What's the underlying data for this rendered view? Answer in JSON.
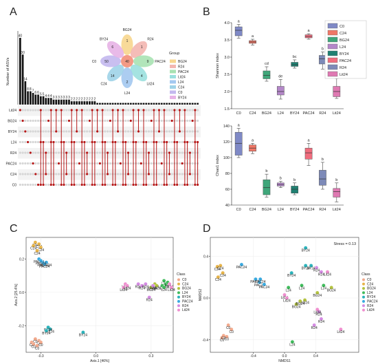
{
  "panel_labels": [
    "A",
    "B",
    "C",
    "D"
  ],
  "chart_data": [
    {
      "panel": "A",
      "type": "bar",
      "ylabel": "Number of ASVs",
      "values": [
        40,
        30,
        14,
        8,
        8,
        7,
        6,
        6,
        5,
        5,
        4,
        4,
        4,
        3,
        3,
        3,
        3,
        3,
        3,
        3,
        2,
        2,
        2,
        2,
        2,
        2,
        2,
        2,
        2,
        2,
        1,
        1,
        1,
        1,
        1,
        1,
        1,
        1,
        1,
        1,
        1,
        1,
        1,
        1,
        1,
        1,
        1,
        1,
        1,
        1,
        1,
        1,
        1,
        1,
        1,
        1,
        1,
        1,
        1,
        1,
        1,
        1,
        1,
        1,
        1,
        1,
        1,
        1,
        1,
        1
      ],
      "sets": [
        "Lit24",
        "BG24",
        "BY24",
        "L24",
        "R24",
        "PAC24",
        "C24",
        "C0"
      ],
      "flower": {
        "petals": [
          {
            "name": "BG24",
            "value": "1",
            "color": "#f7d68e"
          },
          {
            "name": "R24",
            "value": "1",
            "color": "#f3b6b0"
          },
          {
            "name": "PAC24",
            "value": "9",
            "color": "#a8e2b2"
          },
          {
            "name": "Lit24",
            "value": "4",
            "color": "#9be0de"
          },
          {
            "name": "L24",
            "value": "2",
            "color": "#a3c8f0"
          },
          {
            "name": "C24",
            "value": "14",
            "color": "#9fd3e8"
          },
          {
            "name": "C0",
            "value": "50",
            "color": "#c3b8ee"
          },
          {
            "name": "BY24",
            "value": "6",
            "color": "#e7b3e6"
          }
        ],
        "center": "40",
        "legend_title": "Group",
        "legend": [
          "BG24",
          "R24",
          "PAC24",
          "Lit24",
          "L24",
          "C24",
          "C0",
          "BY24"
        ]
      }
    },
    {
      "panel": "B-top",
      "type": "box",
      "ylabel": "Shannon index",
      "ylim": [
        1.5,
        4.0
      ],
      "yticks": [
        "1.5",
        "2.0",
        "2.5",
        "3.0",
        "3.5",
        "4.0"
      ],
      "categories": [
        "C0",
        "C24",
        "BG24",
        "L24",
        "BY24",
        "PAC24",
        "R24",
        "Lit24"
      ],
      "boxes": [
        {
          "min": 3.55,
          "q1": 3.62,
          "median": 3.78,
          "q3": 3.88,
          "max": 3.95,
          "letter": "a"
        },
        {
          "min": 3.35,
          "q1": 3.4,
          "median": 3.44,
          "q3": 3.48,
          "max": 3.52,
          "letter": "a"
        },
        {
          "min": 2.3,
          "q1": 2.37,
          "median": 2.47,
          "q3": 2.6,
          "max": 2.72,
          "letter": "cd"
        },
        {
          "min": 1.78,
          "q1": 1.9,
          "median": 2.0,
          "q3": 2.15,
          "max": 2.35,
          "letter": "de"
        },
        {
          "min": 2.68,
          "q1": 2.73,
          "median": 2.78,
          "q3": 2.85,
          "max": 2.92,
          "letter": "bc"
        },
        {
          "min": 3.52,
          "q1": 3.56,
          "median": 3.6,
          "q3": 3.65,
          "max": 3.68,
          "letter": "a"
        },
        {
          "min": 2.65,
          "q1": 2.8,
          "median": 2.95,
          "q3": 3.05,
          "max": 3.15,
          "letter": "b"
        },
        {
          "min": 1.8,
          "q1": 1.85,
          "median": 2.0,
          "q3": 2.15,
          "max": 2.38,
          "letter": "e"
        }
      ]
    },
    {
      "panel": "B-bottom",
      "type": "box",
      "ylabel": "Chao1 index",
      "ylim": [
        40,
        140
      ],
      "yticks": [
        "40",
        "60",
        "80",
        "100",
        "120",
        "140"
      ],
      "categories": [
        "C0",
        "C24",
        "BG24",
        "L24",
        "BY24",
        "PAC24",
        "R24",
        "Lit24"
      ],
      "boxes": [
        {
          "min": 100,
          "q1": 103,
          "median": 118,
          "q3": 132,
          "max": 137,
          "letter": "a"
        },
        {
          "min": 105,
          "q1": 108,
          "median": 112,
          "q3": 116,
          "max": 118,
          "letter": "a"
        },
        {
          "min": 50,
          "q1": 53,
          "median": 62,
          "q3": 72,
          "max": 79,
          "letter": "b"
        },
        {
          "min": 62,
          "q1": 64,
          "median": 66,
          "q3": 68,
          "max": 70,
          "letter": "b"
        },
        {
          "min": 53,
          "q1": 55,
          "median": 60,
          "q3": 64,
          "max": 68,
          "letter": "b"
        },
        {
          "min": 90,
          "q1": 98,
          "median": 106,
          "q3": 112,
          "max": 118,
          "letter": "a"
        },
        {
          "min": 60,
          "q1": 65,
          "median": 73,
          "q3": 84,
          "max": 94,
          "letter": "b"
        },
        {
          "min": 44,
          "q1": 50,
          "median": 57,
          "q3": 61,
          "max": 68,
          "letter": "b"
        }
      ]
    },
    {
      "panel": "C",
      "type": "scatter",
      "xlabel": "Axis.1 [46%]",
      "ylabel": "Axis.2 [25.4%]",
      "legend_title": "Class",
      "xlim": [
        -0.38,
        0.42
      ],
      "ylim": [
        -0.36,
        0.33
      ],
      "xticks": [
        -0.3,
        0.0,
        0.3
      ],
      "yticks": [
        -0.2,
        0.0,
        0.2
      ],
      "xtick_labels": [
        "-0.3",
        "0.0",
        "0.3"
      ],
      "ytick_labels": [
        "-0.2",
        "0.0",
        "0.2"
      ],
      "series": [
        {
          "name": "C0",
          "color": "#f2a98c",
          "x": [
            -0.35,
            -0.33,
            -0.31,
            -0.34,
            -0.32,
            -0.3
          ],
          "y": [
            -0.3,
            -0.28,
            -0.29,
            -0.31,
            -0.32,
            -0.3
          ]
        },
        {
          "name": "C24",
          "color": "#e7b44a",
          "x": [
            -0.33,
            -0.31,
            -0.3,
            -0.32,
            -0.34
          ],
          "y": [
            0.3,
            0.29,
            0.27,
            0.25,
            0.28
          ]
        },
        {
          "name": "BG24",
          "color": "#b3c23f",
          "x": [
            0.32,
            0.31,
            0.3,
            0.33
          ],
          "y": [
            0.05,
            0.04,
            0.03,
            0.04
          ]
        },
        {
          "name": "L24",
          "color": "#3fbb5b",
          "x": [
            0.37,
            0.38,
            0.36,
            0.39,
            0.37
          ],
          "y": [
            0.07,
            0.05,
            0.04,
            0.06,
            0.03
          ]
        },
        {
          "name": "BY24",
          "color": "#2bb3bb",
          "x": [
            -0.25,
            -0.26,
            -0.27,
            -0.07
          ],
          "y": [
            -0.22,
            -0.21,
            -0.23,
            -0.24
          ]
        },
        {
          "name": "PAC24",
          "color": "#39a9df",
          "x": [
            -0.31,
            -0.29,
            -0.27,
            -0.28,
            -0.3
          ],
          "y": [
            0.2,
            0.18,
            0.18,
            0.17,
            0.19
          ]
        },
        {
          "name": "R24",
          "color": "#d58be3",
          "x": [
            0.23,
            0.25,
            0.27,
            0.31,
            0.29
          ],
          "y": [
            0.05,
            0.04,
            0.05,
            0.04,
            -0.03
          ]
        },
        {
          "name": "Lit24",
          "color": "#ef8fcf",
          "x": [
            0.4,
            0.41,
            0.16,
            0.15,
            0.17
          ],
          "y": [
            0.05,
            0.03,
            0.05,
            0.03,
            0.04
          ]
        }
      ]
    },
    {
      "panel": "D",
      "type": "scatter",
      "xlabel": "NMDS1",
      "ylabel": "NMDS2",
      "annotation": "Stress = 0.13",
      "legend_title": "Class",
      "xlim": [
        -0.95,
        0.95
      ],
      "ylim": [
        -0.52,
        0.58
      ],
      "xticks": [
        -0.4,
        0.0,
        0.4
      ],
      "yticks": [
        -0.4,
        0.0,
        0.4
      ],
      "xtick_labels": [
        "-0.4",
        "0.0",
        "0.4"
      ],
      "ytick_labels": [
        "-0.4",
        "0.0",
        "0.4"
      ],
      "series": [
        {
          "name": "C0",
          "color": "#f2a98c",
          "x": [
            -0.8,
            -0.74,
            -0.68,
            -0.72,
            -0.78
          ],
          "y": [
            -0.38,
            -0.37,
            -0.3,
            -0.26,
            -0.36
          ]
        },
        {
          "name": "C24",
          "color": "#e7b44a",
          "x": [
            -0.86,
            -0.82,
            -0.79,
            -0.85
          ],
          "y": [
            0.3,
            0.31,
            0.24,
            0.2
          ]
        },
        {
          "name": "BG24",
          "color": "#b3c23f",
          "x": [
            0.42,
            0.26,
            0.15,
            0.2,
            0.6
          ],
          "y": [
            0.05,
            -0.02,
            -0.06,
            -0.03,
            0.1
          ]
        },
        {
          "name": "L24",
          "color": "#3fbb5b",
          "x": [
            0.05,
            0.22,
            0.5,
            0.1
          ],
          "y": [
            0.1,
            0.12,
            0.12,
            -0.42
          ]
        },
        {
          "name": "BY24",
          "color": "#2bb3bb",
          "x": [
            0.27,
            0.27,
            0.34,
            0.09
          ],
          "y": [
            0.48,
            0.31,
            0.31,
            0.24
          ]
        },
        {
          "name": "PAC24",
          "color": "#39a9df",
          "x": [
            -0.55,
            -0.37,
            -0.32,
            -0.26,
            -0.31
          ],
          "y": [
            0.32,
            0.18,
            0.15,
            0.13,
            0.18
          ]
        },
        {
          "name": "R24",
          "color": "#d58be3",
          "x": [
            0.41,
            0.47,
            0.44,
            0.47,
            0.38
          ],
          "y": [
            0.29,
            0.25,
            -0.13,
            -0.2,
            -0.26
          ]
        },
        {
          "name": "Lit24",
          "color": "#ef8fcf",
          "x": [
            0.0,
            0.55,
            0.72,
            0.42,
            0.03
          ],
          "y": [
            0.03,
            0.25,
            -0.3,
            -0.11,
            0.0
          ]
        }
      ]
    }
  ]
}
